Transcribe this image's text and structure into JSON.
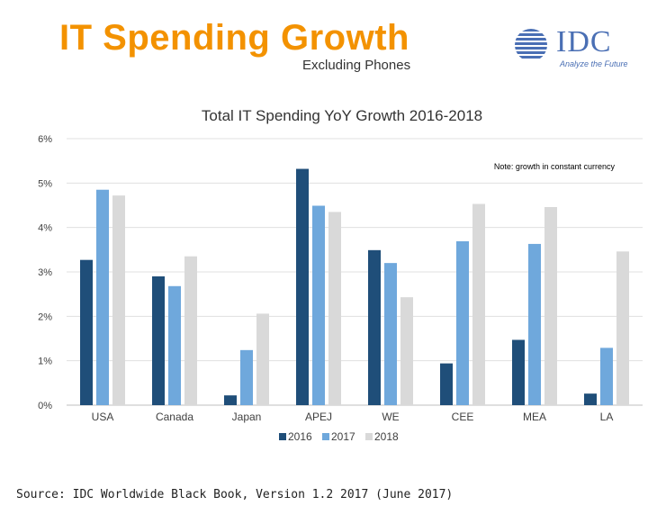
{
  "header": {
    "title": "IT Spending Growth",
    "subtitle": "Excluding Phones",
    "title_color": "#f39200"
  },
  "logo": {
    "name": "IDC",
    "tagline": "Analyze the Future",
    "color": "#4a6fb4"
  },
  "chart_data": {
    "type": "bar",
    "title": "Total IT Spending YoY Growth 2016-2018",
    "note": "Note: growth in constant currency",
    "categories": [
      "USA",
      "Canada",
      "Japan",
      "APEJ",
      "WE",
      "CEE",
      "MEA",
      "LA"
    ],
    "series": [
      {
        "name": "2016",
        "color": "#1f4e79",
        "values": [
          3.27,
          2.9,
          0.22,
          5.32,
          3.49,
          0.94,
          1.47,
          0.26
        ]
      },
      {
        "name": "2017",
        "color": "#6fa8dc",
        "values": [
          4.85,
          2.68,
          1.24,
          4.49,
          3.2,
          3.69,
          3.63,
          1.29
        ]
      },
      {
        "name": "2018",
        "color": "#d9d9d9",
        "values": [
          4.72,
          3.35,
          2.06,
          4.35,
          2.43,
          4.53,
          4.46,
          3.46
        ]
      }
    ],
    "yticks": [
      "0%",
      "1%",
      "2%",
      "3%",
      "4%",
      "5%",
      "6%"
    ],
    "ylim": [
      0,
      6
    ],
    "xlabel": "",
    "ylabel": "",
    "grid": true,
    "legend_position": "bottom"
  },
  "footer": {
    "source": "Source: IDC Worldwide Black Book, Version 1.2 2017 (June 2017)"
  }
}
